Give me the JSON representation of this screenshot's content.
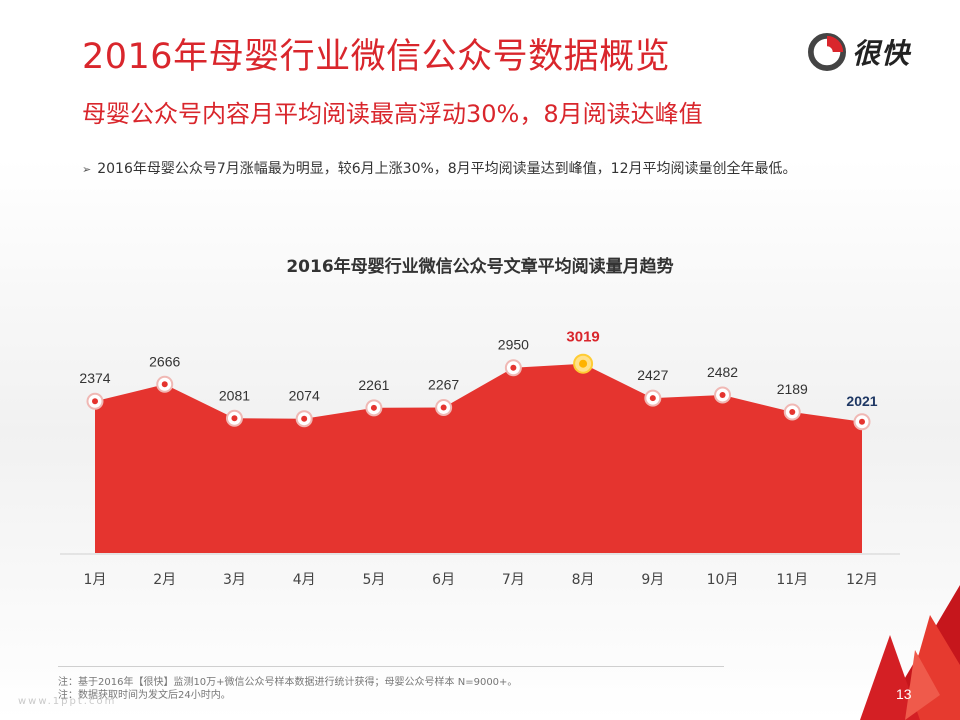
{
  "title": "2016年母婴行业微信公众号数据概览",
  "subtitle": "母婴公众号内容月平均阅读最高浮动30%，8月阅读达峰值",
  "bullet": "2016年母婴公众号7月涨幅最为明显，较6月上涨30%，8月平均阅读量达到峰值，12月平均阅读量创全年最低。",
  "logo": {
    "text": "很快",
    "icon": "logo-icon"
  },
  "footnotes": [
    "注：基于2016年【很快】监测10万+微信公众号样本数据进行统计获得；母婴公众号样本 N=9000+。",
    "注：数据获取时间为发文后24小时内。"
  ],
  "watermark": "www.1ppt.com",
  "page_number": "13",
  "colors": {
    "accent": "#d9262c",
    "area": "#e5342f",
    "peak_label": "#d9262c",
    "last_label": "#1f3864",
    "label": "#333333"
  },
  "chart_data": {
    "type": "area",
    "title": "2016年母婴行业微信公众号文章平均阅读量月趋势",
    "categories": [
      "1月",
      "2月",
      "3月",
      "4月",
      "5月",
      "6月",
      "7月",
      "8月",
      "9月",
      "10月",
      "11月",
      "12月"
    ],
    "values": [
      2374,
      2666,
      2081,
      2074,
      2261,
      2267,
      2950,
      3019,
      2427,
      2482,
      2189,
      2021
    ],
    "highlight": {
      "max": "8月",
      "last": "12月"
    },
    "grid": false,
    "legend": "none"
  }
}
